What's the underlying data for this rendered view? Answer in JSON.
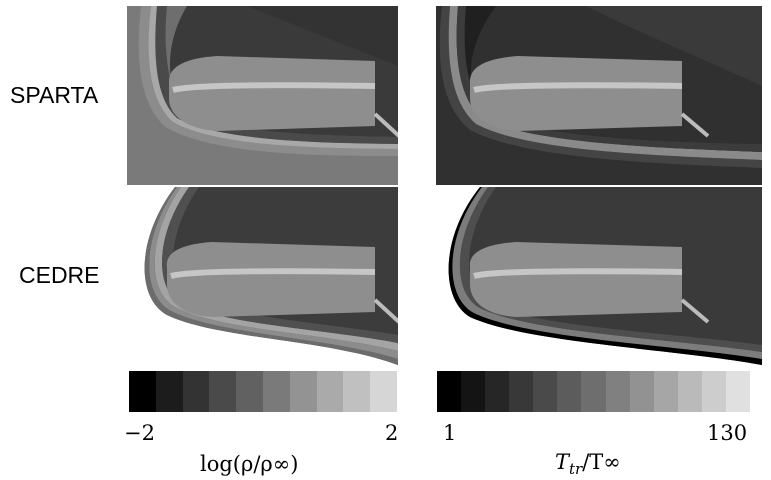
{
  "rows": [
    {
      "label": "SPARTA"
    },
    {
      "label": "CEDRE"
    }
  ],
  "panels": [
    {
      "id": "sparta-density",
      "quantity": "density",
      "solver": "SPARTA",
      "freestream_gray": "#6e6e6e"
    },
    {
      "id": "sparta-temperature",
      "quantity": "temperature",
      "solver": "SPARTA",
      "freestream_gray": "#202020"
    },
    {
      "id": "cedre-density",
      "quantity": "density",
      "solver": "CEDRE",
      "freestream_gray": "#3c3c3c"
    },
    {
      "id": "cedre-temperature",
      "quantity": "temperature",
      "solver": "CEDRE",
      "freestream_gray": "#3a3a3a"
    }
  ],
  "colorbars": [
    {
      "id": "density-colorbar",
      "min_label": "−2",
      "max_label": "2",
      "label_main": "log(ρ/ρ∞)",
      "grays": [
        "#000000",
        "#1c1c1c",
        "#333333",
        "#4a4a4a",
        "#616161",
        "#7a7a7a",
        "#939393",
        "#aaaaaa",
        "#c0c0c0",
        "#d6d6d6"
      ]
    },
    {
      "id": "temperature-colorbar",
      "min_label": "1",
      "max_label": "130",
      "label_main": "T",
      "label_sub": "tr",
      "label_rest": "/T∞",
      "grays": [
        "#000000",
        "#141414",
        "#262626",
        "#383838",
        "#4a4a4a",
        "#5c5c5c",
        "#6e6e6e",
        "#808080",
        "#929292",
        "#a6a6a6",
        "#bababa",
        "#cdcdcd",
        "#e0e0e0"
      ]
    }
  ]
}
